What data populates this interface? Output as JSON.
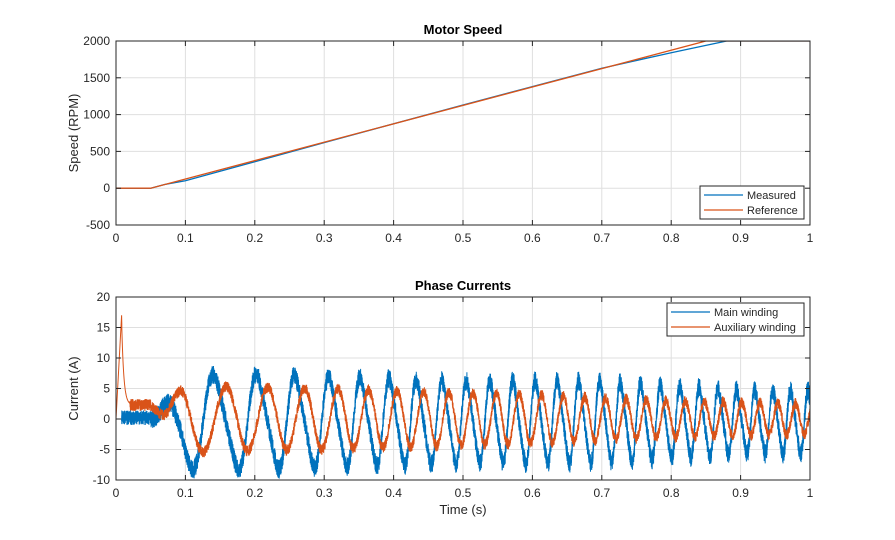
{
  "colors": {
    "series1": "#0072BD",
    "series2": "#D95319",
    "grid": "#DFDFDF",
    "axis": "#262626"
  },
  "chart_data": [
    {
      "type": "line",
      "title": "Motor Speed",
      "xlabel": "",
      "ylabel": "Speed (RPM)",
      "xlim": [
        0,
        1
      ],
      "ylim": [
        -500,
        2000
      ],
      "xticks": [
        0,
        0.1,
        0.2,
        0.3,
        0.4,
        0.5,
        0.6,
        0.7,
        0.8,
        0.9,
        1
      ],
      "xtick_labels": [
        "0",
        "0.1",
        "0.2",
        "0.3",
        "0.4",
        "0.5",
        "0.6",
        "0.7",
        "0.8",
        "0.9",
        "1"
      ],
      "yticks": [
        -500,
        0,
        500,
        1000,
        1500,
        2000
      ],
      "ytick_labels": [
        "-500",
        "0",
        "500",
        "1000",
        "1500",
        "2000"
      ],
      "grid": true,
      "legend": "bottom-right",
      "series": [
        {
          "name": "Measured",
          "x": [
            0,
            0.05,
            0.07,
            0.1,
            0.2,
            0.3,
            0.5,
            0.7,
            0.8,
            0.85,
            0.88,
            0.9,
            1
          ],
          "y": [
            0,
            0,
            50,
            100,
            360,
            620,
            1130,
            1630,
            1840,
            1940,
            2000,
            2000,
            2000
          ]
        },
        {
          "name": "Reference",
          "x": [
            0,
            0.05,
            0.85,
            1
          ],
          "y": [
            0,
            0,
            2000,
            2000
          ]
        }
      ]
    },
    {
      "type": "line",
      "title": "Phase Currents",
      "xlabel": "Time (s)",
      "ylabel": "Current (A)",
      "xlim": [
        0,
        1
      ],
      "ylim": [
        -10,
        20
      ],
      "xticks": [
        0,
        0.1,
        0.2,
        0.3,
        0.4,
        0.5,
        0.6,
        0.7,
        0.8,
        0.9,
        1
      ],
      "xtick_labels": [
        "0",
        "0.1",
        "0.2",
        "0.3",
        "0.4",
        "0.5",
        "0.6",
        "0.7",
        "0.8",
        "0.9",
        "1"
      ],
      "yticks": [
        -10,
        -5,
        0,
        5,
        10,
        15,
        20
      ],
      "ytick_labels": [
        "-10",
        "-5",
        "0",
        "5",
        "10",
        "15",
        "20"
      ],
      "grid": true,
      "legend": "top-right",
      "series": [
        {
          "name": "Main winding",
          "envelope_t": [
            0,
            0.05,
            0.1,
            0.2,
            0.5,
            0.7,
            0.9,
            1
          ],
          "envelope_amp": [
            1,
            1.5,
            7.5,
            7.5,
            6.5,
            6.5,
            5,
            5
          ],
          "offset_t": [
            0,
            0.05,
            0.1,
            1
          ],
          "offset": [
            0,
            0,
            0,
            0
          ]
        },
        {
          "name": "Auxiliary winding",
          "envelope_t": [
            0,
            0.05,
            0.1,
            0.3,
            0.6,
            0.8,
            1
          ],
          "envelope_amp": [
            0.5,
            0.5,
            5.5,
            5,
            4,
            3,
            2.5
          ],
          "peak": 17,
          "peak_t": 0.008
        }
      ],
      "frequency_t": [
        0.05,
        0.2,
        0.5,
        1
      ],
      "frequency_hz": [
        12,
        17,
        29,
        40
      ]
    }
  ]
}
